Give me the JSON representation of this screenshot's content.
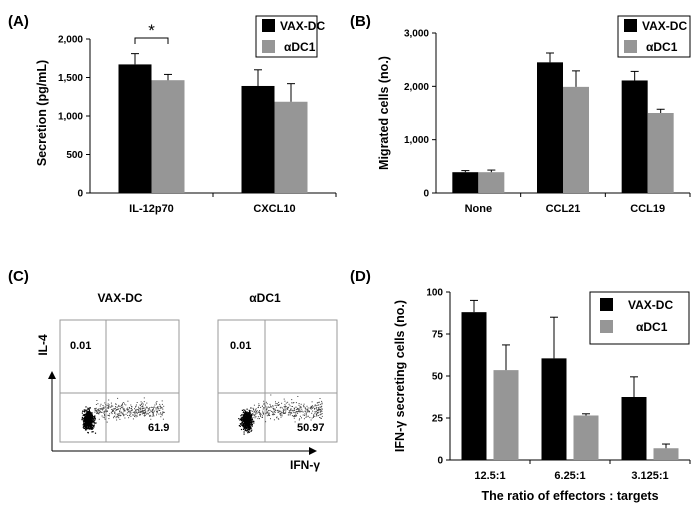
{
  "colors": {
    "series1": "#000000",
    "series2": "#969696",
    "axis": "#000000",
    "text": "#000000"
  },
  "chart_data": [
    {
      "id": "A",
      "panel_label": "(A)",
      "type": "bar",
      "categories": [
        "IL-12p70",
        "CXCL10"
      ],
      "series": [
        {
          "name": "VAX-DC",
          "values": [
            1670,
            1390
          ],
          "errors": [
            140,
            210
          ]
        },
        {
          "name": "αDC1",
          "values": [
            1465,
            1185
          ],
          "errors": [
            75,
            235
          ]
        }
      ],
      "ylabel": "Secretion (pg/mL)",
      "ylim": [
        0,
        2000
      ],
      "yticks": [
        0,
        500,
        1000,
        1500,
        2000
      ],
      "ytick_labels": [
        "0",
        "500",
        "1,000",
        "1,500",
        "2,000"
      ],
      "legend_position": "top-right",
      "annotation": {
        "text": "*",
        "category": "IL-12p70"
      }
    },
    {
      "id": "B",
      "panel_label": "(B)",
      "type": "bar",
      "categories": [
        "None",
        "CCL21",
        "CCL19"
      ],
      "series": [
        {
          "name": "VAX-DC",
          "values": [
            390,
            2450,
            2110
          ],
          "errors": [
            30,
            175,
            170
          ]
        },
        {
          "name": "αDC1",
          "values": [
            390,
            1990,
            1500
          ],
          "errors": [
            40,
            300,
            70
          ]
        }
      ],
      "ylabel": "Migrated cells (no.)",
      "ylim": [
        0,
        3000
      ],
      "yticks": [
        0,
        1000,
        2000,
        3000
      ],
      "ytick_labels": [
        "0",
        "1,000",
        "2,000",
        "3,000"
      ],
      "legend_position": "top-right"
    },
    {
      "id": "C",
      "panel_label": "(C)",
      "type": "scatter",
      "x_axis_label": "IFN-γ",
      "y_axis_label": "IL-4",
      "plots": [
        {
          "title": "VAX-DC",
          "upper_left": "0.01",
          "lower_right": "61.9"
        },
        {
          "title": "αDC1",
          "upper_left": "0.01",
          "lower_right": "50.97"
        }
      ]
    },
    {
      "id": "D",
      "panel_label": "(D)",
      "type": "bar",
      "categories": [
        "12.5:1",
        "6.25:1",
        "3.125:1"
      ],
      "series": [
        {
          "name": "VAX-DC",
          "values": [
            88,
            60.5,
            37.5
          ],
          "errors": [
            7,
            24.5,
            12
          ]
        },
        {
          "name": "αDC1",
          "values": [
            53.5,
            26.5,
            7
          ],
          "errors": [
            15,
            1,
            2.5
          ]
        }
      ],
      "ylabel": "IFN-γ secreting cells (no.)",
      "xlabel": "The ratio of effectors : targets",
      "ylim": [
        0,
        100
      ],
      "yticks": [
        0,
        25,
        50,
        75,
        100
      ],
      "ytick_labels": [
        "0",
        "25",
        "50",
        "75",
        "100"
      ],
      "legend_position": "top-right"
    }
  ]
}
